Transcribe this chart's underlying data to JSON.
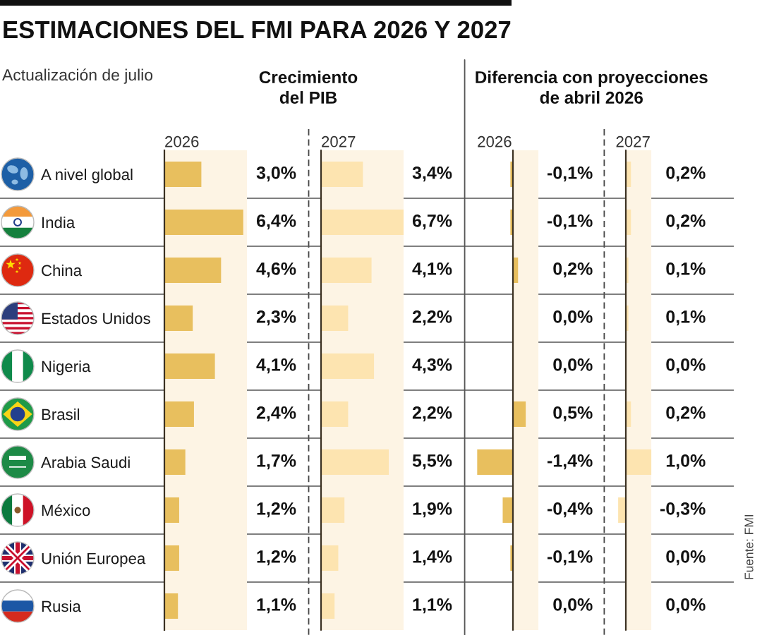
{
  "chart_data": [
    {
      "type": "other",
      "title": "ESTIMACIONES DEL FMI PARA 2026 Y 2027",
      "subtitle": "Actualización de julio",
      "annotations": [
        "Crecimiento\ndel PIB",
        "Diferencia con proyecciones\nde abril 2026",
        "Fuente: FMI"
      ]
    },
    {
      "type": "bar",
      "orientation": "horizontal",
      "title": "2026",
      "categories": [
        "A nivel global",
        "India",
        "China",
        "Estados Unidos",
        "Nigeria",
        "Brasil",
        "Arabia Saudi",
        "México",
        "Unión Europea",
        "Rusia"
      ],
      "values": [
        3.0,
        6.4,
        4.6,
        2.3,
        4.1,
        2.4,
        1.7,
        1.2,
        1.2,
        1.1
      ],
      "value_labels": [
        "3,0%",
        "6,4%",
        "4,6%",
        "2,3%",
        "4,1%",
        "2,4%",
        "1,7%",
        "1,2%",
        "1,2%",
        "1,1%"
      ],
      "color": "#e8bf5e",
      "xlim": [
        0,
        6.7
      ],
      "bands": [
        {
          "axis": "x",
          "from": 0,
          "to": 6.7,
          "color": "#fdf4e4"
        }
      ],
      "tick_labels": "y"
    },
    {
      "type": "bar",
      "orientation": "horizontal",
      "title": "2027",
      "categories": [
        null,
        null,
        null,
        null,
        null,
        null,
        null,
        null,
        null,
        null
      ],
      "values": [
        3.4,
        6.7,
        4.1,
        2.2,
        4.3,
        2.2,
        5.5,
        1.9,
        1.4,
        1.1
      ],
      "value_labels": [
        "3,4%",
        "6,7%",
        "4,1%",
        "2,2%",
        "4,3%",
        "2,2%",
        "5,5%",
        "1,9%",
        "1,4%",
        "1,1%"
      ],
      "color": "#fde4b0",
      "xlim": [
        0,
        6.7
      ],
      "bands": [
        {
          "axis": "x",
          "from": 0,
          "to": 6.7,
          "color": "#fdf4e4"
        }
      ],
      "ref_lines": [
        {
          "axis": "x",
          "value": 0,
          "color": "#3b3122"
        }
      ],
      "tick_labels": false
    },
    {
      "type": "bar",
      "orientation": "horizontal",
      "title": "2026",
      "categories": [
        null,
        null,
        null,
        null,
        null,
        null,
        null,
        null,
        null,
        null
      ],
      "values": [
        -0.1,
        -0.1,
        0.2,
        0.0,
        0.0,
        0.5,
        -1.4,
        -0.4,
        -0.1,
        0.0
      ],
      "value_labels": [
        "-0,1%",
        "-0,1%",
        "0,2%",
        "0,0%",
        "0,0%",
        "0,5%",
        "-1,4%",
        "-0,4%",
        "-0,1%",
        "0,0%"
      ],
      "color": "#e8bf5e",
      "xlim": [
        -1.4,
        1.0
      ],
      "bands": [
        {
          "axis": "x",
          "from": 0,
          "to": 1.0,
          "color": "#fdf4e4"
        }
      ],
      "ref_lines": [
        {
          "axis": "x",
          "value": 0,
          "color": "#3b3122"
        }
      ],
      "tick_labels": false
    },
    {
      "type": "bar",
      "orientation": "horizontal",
      "title": "2027",
      "categories": [
        null,
        null,
        null,
        null,
        null,
        null,
        null,
        null,
        null,
        null
      ],
      "values": [
        0.2,
        0.2,
        0.1,
        0.1,
        0.0,
        0.2,
        1.0,
        -0.3,
        0.0,
        0.0
      ],
      "value_labels": [
        "0,2%",
        "0,2%",
        "0,1%",
        "0,1%",
        "0,0%",
        "0,2%",
        "1,0%",
        "-0,3%",
        "0,0%",
        "0,0%"
      ],
      "color": "#fde4b0",
      "xlim": [
        -0.4,
        1.0
      ],
      "bands": [
        {
          "axis": "x",
          "from": 0,
          "to": 1.0,
          "color": "#fdf4e4"
        }
      ],
      "ref_lines": [
        {
          "axis": "x",
          "value": 0,
          "color": "#3b3122"
        }
      ],
      "tick_labels": false
    }
  ]
}
